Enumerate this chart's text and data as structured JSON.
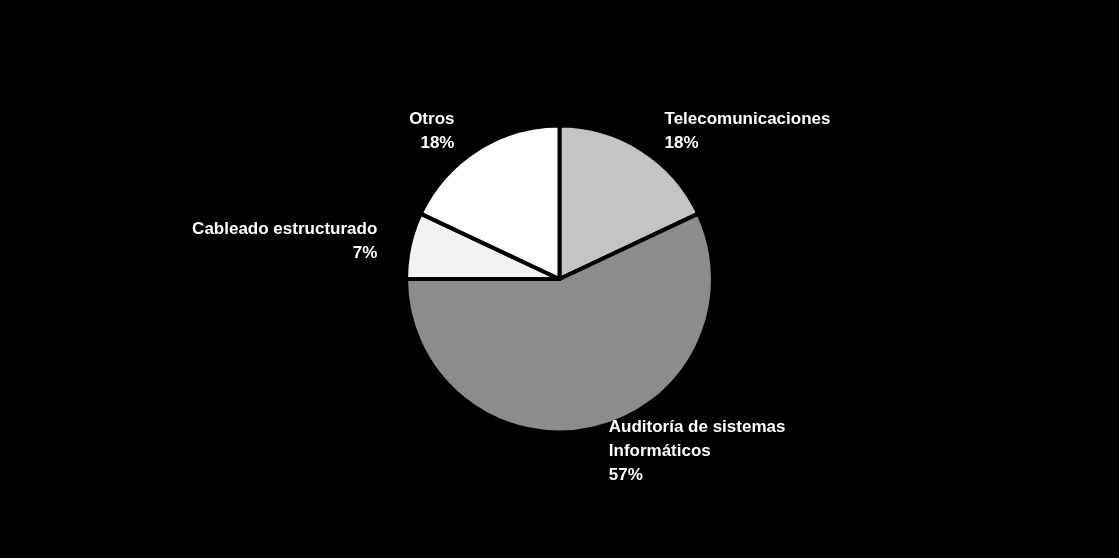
{
  "chart_data": {
    "type": "pie",
    "categories": [
      "Telecomunicaciones",
      "Auditoría de sistemas Informáticos",
      "Cableado estructurado",
      "Otros"
    ],
    "values": [
      18,
      57,
      7,
      18
    ],
    "value_labels": [
      "18%",
      "57%",
      "7%",
      "18%"
    ],
    "colors": [
      "#c4c4c4",
      "#8c8c8c",
      "#f2f2f2",
      "#ffffff"
    ],
    "legend": false
  }
}
